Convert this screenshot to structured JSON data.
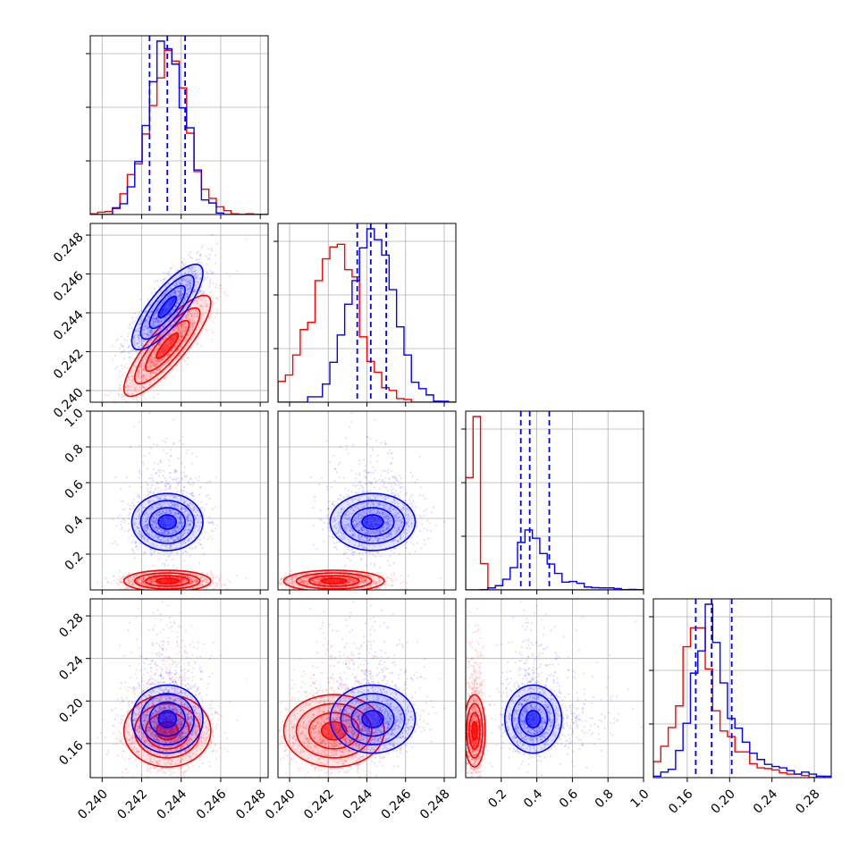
{
  "colors": {
    "series_a": "#ff0000",
    "series_b": "#0000ff",
    "grid": "#b0b0b0",
    "frame": "#000000"
  },
  "chart_data": {
    "type": "corner",
    "title": "",
    "grid": true,
    "parameters": [
      {
        "ticks": [
          "0.240",
          "0.242",
          "0.244",
          "0.246",
          "0.248"
        ],
        "range": [
          0.2394,
          0.2484
        ]
      },
      {
        "ticks": [
          "0.240",
          "0.242",
          "0.244",
          "0.246",
          "0.248"
        ],
        "range": [
          0.2394,
          0.2486
        ]
      },
      {
        "ticks": [
          "0.2",
          "0.4",
          "0.6",
          "0.8",
          "1.0"
        ],
        "range": [
          0.0,
          1.0
        ]
      },
      {
        "ticks": [
          "0.16",
          "0.20",
          "0.24",
          "0.28"
        ],
        "range": [
          0.128,
          0.296
        ]
      }
    ],
    "series": [
      {
        "color_key": "series_a",
        "mean": [
          0.2433,
          0.2423,
          0.05,
          0.172
        ],
        "sd": [
          0.0011,
          0.0013,
          0.03,
          0.017
        ],
        "corr": [
          [
            1,
            0.85,
            0,
            0
          ],
          [
            0.85,
            1,
            0,
            0
          ],
          [
            0,
            0,
            1,
            0
          ],
          [
            0,
            0,
            0,
            1
          ]
        ],
        "quantiles_marked": false
      },
      {
        "color_key": "series_b",
        "mean": [
          0.2433,
          0.2443,
          0.38,
          0.183
        ],
        "sd": [
          0.0009,
          0.0011,
          0.08,
          0.016
        ],
        "corr": [
          [
            1,
            0.8,
            0,
            0
          ],
          [
            0.8,
            1,
            0,
            0
          ],
          [
            0,
            0,
            1,
            0
          ],
          [
            0,
            0,
            0,
            1
          ]
        ],
        "quantiles": [
          [
            0.2424,
            0.2433,
            0.2442
          ],
          [
            0.2435,
            0.2442,
            0.245
          ],
          [
            0.31,
            0.36,
            0.47
          ],
          [
            0.168,
            0.183,
            0.202
          ]
        ],
        "quantiles_marked": true
      }
    ]
  }
}
